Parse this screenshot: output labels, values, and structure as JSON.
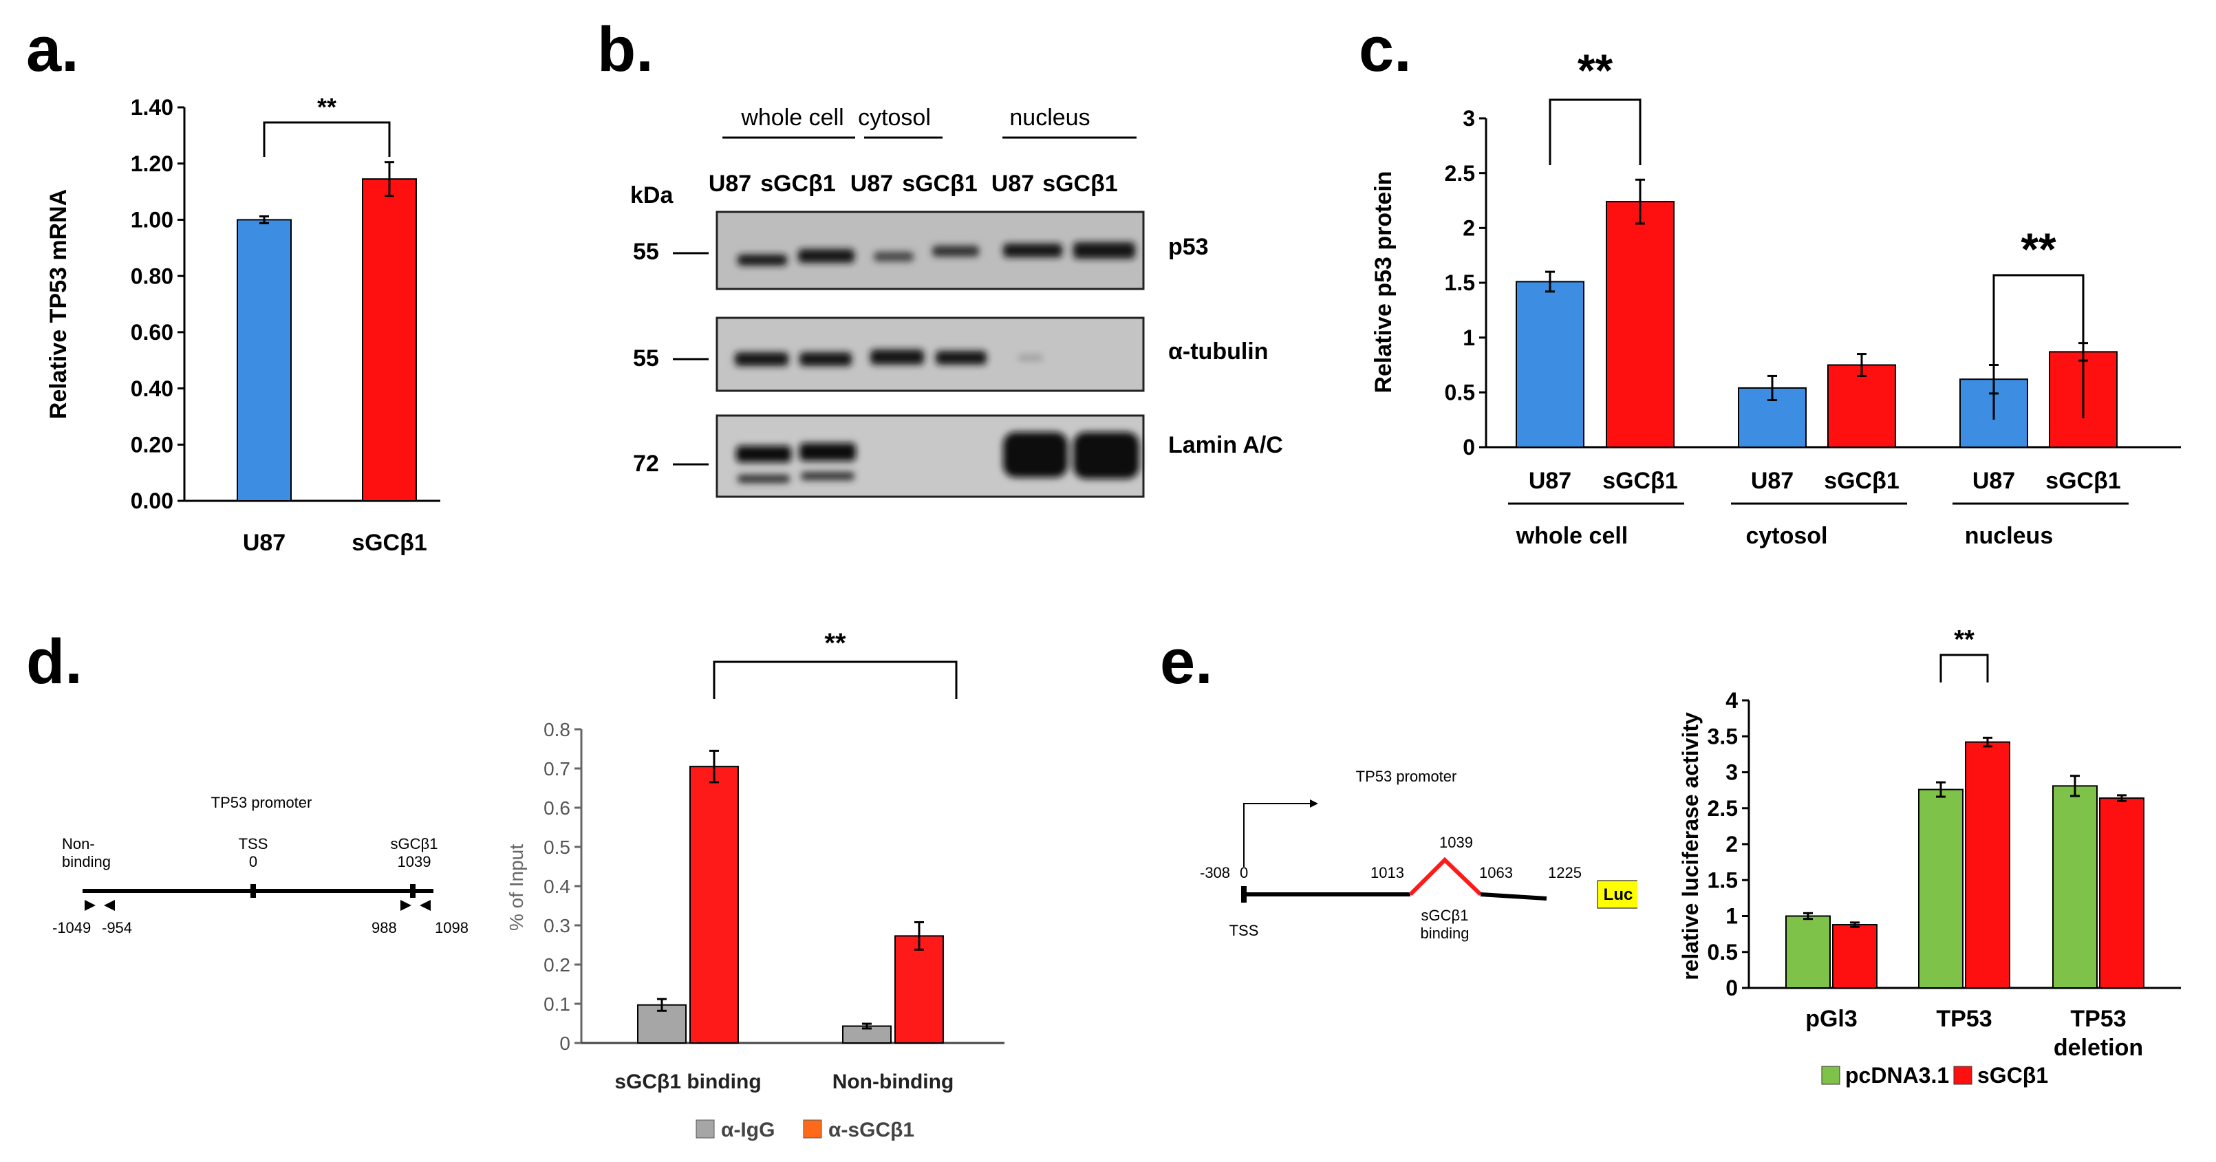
{
  "panels": {
    "a": {
      "label": "a."
    },
    "b": {
      "label": "b."
    },
    "c": {
      "label": "c."
    },
    "d": {
      "label": "d."
    },
    "e": {
      "label": "e."
    }
  },
  "colors": {
    "u87": "#3d8ee3",
    "sgc": "#ff1010",
    "igg": "#a6a6a6",
    "anti_sgc": "#ff1a1a",
    "pcdna": "#7fc24a",
    "promoter_red": "#ff1a1a",
    "luc_yellow": "#ffff00"
  },
  "chart_data": [
    {
      "id": "a",
      "type": "bar",
      "categories": [
        "U87",
        "sGCβ1"
      ],
      "values": [
        1.0,
        1.145
      ],
      "errors": [
        0.012,
        0.06
      ],
      "colors": [
        "#3d8ee3",
        "#ff1010"
      ],
      "ylabel": "Relative TP53 mRNA",
      "ylim": [
        0,
        1.4
      ],
      "yticks": [
        "0.00",
        "0.20",
        "0.40",
        "0.60",
        "0.80",
        "1.00",
        "1.20",
        "1.40"
      ],
      "significance": "**"
    },
    {
      "id": "c",
      "type": "bar",
      "groups": [
        "whole cell",
        "cytosol",
        "nucleus"
      ],
      "categories": [
        "U87",
        "sGCβ1",
        "U87",
        "sGCβ1",
        "U87",
        "sGCβ1"
      ],
      "values": [
        1.51,
        2.24,
        0.54,
        0.75,
        0.62,
        0.87
      ],
      "errors": [
        0.09,
        0.2,
        0.11,
        0.1,
        0.13,
        0.08
      ],
      "colors": [
        "#3d8ee3",
        "#ff1010",
        "#3d8ee3",
        "#ff1010",
        "#3d8ee3",
        "#ff1010"
      ],
      "ylabel": "Relative p53 protein",
      "ylim": [
        0,
        3
      ],
      "yticks": [
        "0",
        "0.5",
        "1",
        "1.5",
        "2",
        "2.5",
        "3"
      ],
      "significance": [
        "**",
        "**"
      ]
    },
    {
      "id": "d",
      "type": "bar",
      "categories": [
        "sGCβ1 binding",
        "Non-binding"
      ],
      "series": [
        {
          "name": "α-IgG",
          "values": [
            0.097,
            0.043
          ],
          "errors": [
            0.015,
            0.006
          ]
        },
        {
          "name": "α-sGCβ1",
          "values": [
            0.705,
            0.273
          ],
          "errors": [
            0.04,
            0.035
          ]
        }
      ],
      "ylabel": "% of Input",
      "ylim": [
        0,
        0.8
      ],
      "yticks": [
        "0",
        "0.1",
        "0.2",
        "0.3",
        "0.4",
        "0.5",
        "0.6",
        "0.7",
        "0.8"
      ],
      "legend": "bottom",
      "significance": "**"
    },
    {
      "id": "e",
      "type": "bar",
      "categories": [
        "pGl3",
        "TP53",
        "TP53 deletion"
      ],
      "series": [
        {
          "name": "pcDNA3.1",
          "values": [
            1.0,
            2.76,
            2.81
          ],
          "errors": [
            0.04,
            0.1,
            0.14
          ]
        },
        {
          "name": "sGCβ1",
          "values": [
            0.88,
            3.42,
            2.64
          ],
          "errors": [
            0.03,
            0.06,
            0.04
          ]
        }
      ],
      "ylabel": "relative luciferase activity",
      "ylim": [
        0,
        4
      ],
      "yticks": [
        "0",
        "0.5",
        "1",
        "1.5",
        "2",
        "2.5",
        "3",
        "3.5",
        "4"
      ],
      "legend": "bottom",
      "significance": "**"
    }
  ],
  "western": {
    "groups": [
      "whole cell",
      "cytosol",
      "nucleus"
    ],
    "lanes": [
      "U87",
      "sGCβ1",
      "U87",
      "sGCβ1",
      "U87",
      "sGCβ1"
    ],
    "kda_label": "kDa",
    "markers": [
      "55",
      "55",
      "72"
    ],
    "bands": [
      "p53",
      "α-tubulin",
      "Lamin A/C"
    ]
  },
  "promoter_d": {
    "title": "TP53 promoter",
    "labels": {
      "nonbinding": "Non-",
      "nonbinding2": "binding",
      "tss": "TSS",
      "tss_pos": "0",
      "sgc": "sGCβ1",
      "sgc_pos": "1039",
      "p1": "-1049",
      "p2": "-954",
      "p3": "988",
      "p4": "1098"
    }
  },
  "promoter_e": {
    "title": "TP53 promoter",
    "labels": {
      "left": "-308",
      "zero": "0",
      "p1013": "1013",
      "p1039": "1039",
      "p1063": "1063",
      "p1225": "1225",
      "tss": "TSS",
      "binding1": "sGCβ1",
      "binding2": "binding",
      "luc": "Luc"
    }
  }
}
